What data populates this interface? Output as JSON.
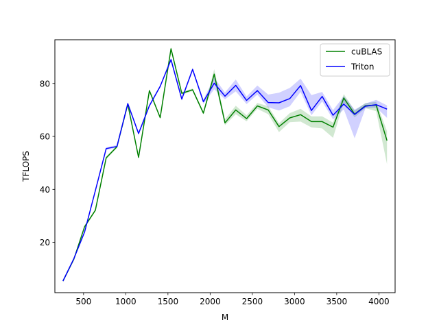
{
  "chart_data": {
    "type": "line",
    "title": "",
    "xlabel": "M",
    "ylabel": "TFLOPS",
    "xlim": [
      160,
      4192
    ],
    "ylim": [
      1,
      96.5
    ],
    "xticks": [
      500,
      1000,
      1500,
      2000,
      2500,
      3000,
      3500,
      4000
    ],
    "yticks": [
      20,
      40,
      60,
      80
    ],
    "grid": false,
    "legend_position": "top-right",
    "x": [
      256,
      384,
      512,
      640,
      768,
      896,
      1024,
      1152,
      1280,
      1408,
      1536,
      1664,
      1792,
      1920,
      2048,
      2176,
      2304,
      2432,
      2560,
      2688,
      2816,
      2944,
      3072,
      3200,
      3328,
      3456,
      3584,
      3712,
      3840,
      3968,
      4096
    ],
    "series": [
      {
        "name": "cuBLAS",
        "color": "#008000",
        "values": [
          5.4,
          13.6,
          25.9,
          32.1,
          51.9,
          56.1,
          72.2,
          52.1,
          77.3,
          67.1,
          93.1,
          76.3,
          77.6,
          68.8,
          83.5,
          65.1,
          70.0,
          66.7,
          71.5,
          70.0,
          63.7,
          67.0,
          68.2,
          65.6,
          65.6,
          63.5,
          74.5,
          68.4,
          71.6,
          71.8,
          58.4
        ],
        "lower": [
          5.0,
          13.2,
          25.4,
          31.7,
          51.4,
          55.6,
          71.7,
          51.6,
          76.8,
          66.6,
          92.4,
          75.8,
          77.1,
          68.2,
          81.6,
          64.2,
          68.4,
          65.7,
          70.4,
          68.4,
          61.6,
          65.4,
          65.6,
          63.4,
          63.0,
          59.5,
          72.8,
          67.2,
          70.7,
          69.5,
          49.5
        ],
        "upper": [
          5.8,
          14.0,
          26.4,
          32.6,
          52.4,
          56.6,
          72.7,
          52.6,
          77.8,
          67.6,
          93.8,
          76.8,
          78.1,
          69.4,
          85.4,
          66.5,
          71.6,
          68.0,
          72.6,
          71.4,
          65.0,
          68.8,
          70.4,
          67.6,
          67.6,
          65.2,
          76.0,
          69.8,
          72.6,
          73.0,
          62.0
        ]
      },
      {
        "name": "Triton",
        "color": "#0000ff",
        "values": [
          5.4,
          13.8,
          23.9,
          39.5,
          55.4,
          56.2,
          72.4,
          61.1,
          71.6,
          78.9,
          89.0,
          74.1,
          85.3,
          73.1,
          80.1,
          75.2,
          79.3,
          73.6,
          77.3,
          72.8,
          72.7,
          74.3,
          79.2,
          69.8,
          75.1,
          68.0,
          72.2,
          68.3,
          71.4,
          72.0,
          70.3
        ],
        "lower": [
          5.0,
          13.4,
          23.4,
          39.0,
          54.9,
          55.7,
          71.9,
          60.6,
          71.1,
          78.4,
          88.3,
          73.5,
          84.6,
          72.3,
          77.8,
          74.0,
          77.0,
          72.2,
          75.8,
          71.0,
          69.8,
          71.4,
          76.8,
          68.0,
          73.2,
          66.4,
          70.2,
          59.3,
          70.6,
          70.9,
          67.0
        ],
        "upper": [
          5.8,
          14.2,
          24.4,
          40.0,
          55.9,
          56.7,
          72.9,
          61.6,
          72.1,
          79.4,
          89.7,
          74.7,
          86.0,
          73.9,
          82.2,
          76.6,
          81.5,
          75.1,
          79.2,
          75.8,
          76.5,
          78.3,
          81.8,
          75.6,
          76.8,
          69.9,
          75.2,
          70.1,
          72.4,
          73.8,
          71.7
        ]
      }
    ]
  }
}
